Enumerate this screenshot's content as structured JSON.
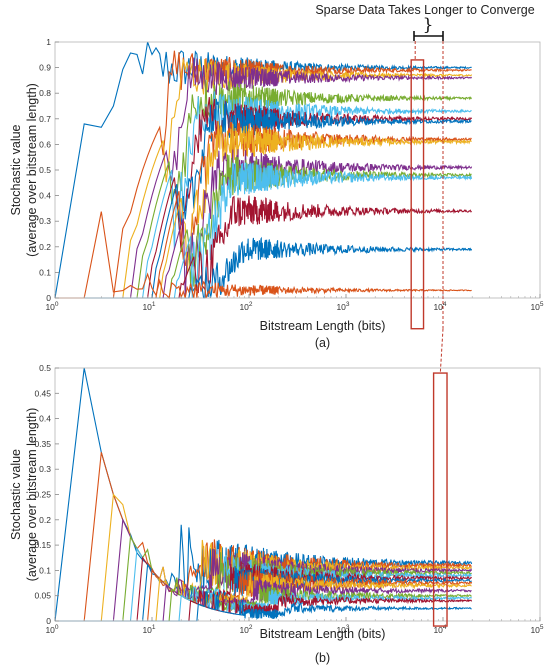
{
  "annotation": {
    "text": "Sparse Data Takes Longer to Converge"
  },
  "colors": {
    "highlight": "#c0392b",
    "palette": [
      "#0072BD",
      "#D95319",
      "#EDB120",
      "#7E2F8E",
      "#77AC30",
      "#4DBEEE",
      "#A2142F"
    ]
  },
  "chart_data": [
    {
      "type": "line",
      "panel_label": "(a)",
      "xscale": "log",
      "xlabel": "Bitstream Length (bits)",
      "ylabel_line1": "Stochastic value",
      "ylabel_line2": "(average over bitstream length)",
      "xlim": [
        1,
        100000
      ],
      "ylim": [
        0,
        1
      ],
      "xticks": [
        1,
        10,
        100,
        1000,
        10000,
        100000
      ],
      "xtick_labels": [
        {
          "base": "10",
          "exp": "0"
        },
        {
          "base": "10",
          "exp": "1"
        },
        {
          "base": "10",
          "exp": "2"
        },
        {
          "base": "10",
          "exp": "3"
        },
        {
          "base": "10",
          "exp": "4"
        },
        {
          "base": "10",
          "exp": "5"
        }
      ],
      "yticks": [
        0,
        0.1,
        0.2,
        0.3,
        0.4,
        0.5,
        0.6,
        0.7,
        0.8,
        0.9,
        1
      ],
      "ytick_labels": [
        "0",
        "0.1",
        "0.2",
        "0.3",
        "0.4",
        "0.5",
        "0.6",
        "0.7",
        "0.8",
        "0.9",
        "1"
      ],
      "highlight_x_range": [
        4700,
        6300
      ],
      "highlight_y_range": [
        -0.12,
        0.93
      ],
      "series_converged_values": [
        0.9,
        0.89,
        0.87,
        0.86,
        0.78,
        0.73,
        0.7,
        0.69,
        0.62,
        0.61,
        0.51,
        0.48,
        0.47,
        0.34,
        0.19,
        0.03
      ],
      "series_first_x": [
        2,
        5,
        6,
        7,
        8,
        9,
        10,
        11,
        12,
        13,
        14,
        16,
        18,
        20,
        25,
        3
      ],
      "x_end": 20000
    },
    {
      "type": "line",
      "panel_label": "(b)",
      "xscale": "log",
      "xlabel": "Bitstream Length (bits)",
      "ylabel_line1": "Stochastic value",
      "ylabel_line2": "(average over bitstream length)",
      "xlim": [
        1,
        100000
      ],
      "ylim": [
        0,
        0.5
      ],
      "xticks": [
        1,
        10,
        100,
        1000,
        10000,
        100000
      ],
      "xtick_labels": [
        {
          "base": "10",
          "exp": "0"
        },
        {
          "base": "10",
          "exp": "1"
        },
        {
          "base": "10",
          "exp": "2"
        },
        {
          "base": "10",
          "exp": "3"
        },
        {
          "base": "10",
          "exp": "4"
        },
        {
          "base": "10",
          "exp": "5"
        }
      ],
      "yticks": [
        0,
        0.05,
        0.1,
        0.15,
        0.2,
        0.25,
        0.3,
        0.35,
        0.4,
        0.45,
        0.5
      ],
      "ytick_labels": [
        "0",
        "0.05",
        "0.1",
        "0.15",
        "0.2",
        "0.25",
        "0.3",
        "0.35",
        "0.4",
        "0.45",
        "0.5"
      ],
      "highlight_x_range": [
        8000,
        11000
      ],
      "highlight_y_range": [
        -0.01,
        0.49
      ],
      "series_converged_values": [
        0.115,
        0.11,
        0.105,
        0.1,
        0.095,
        0.09,
        0.085,
        0.08,
        0.075,
        0.07,
        0.06,
        0.05,
        0.045,
        0.04,
        0.025
      ],
      "series_first_x": [
        2,
        3,
        4,
        5,
        6,
        7,
        8,
        9,
        10,
        12,
        14,
        16,
        20,
        25,
        30
      ],
      "x_end": 20000
    }
  ]
}
